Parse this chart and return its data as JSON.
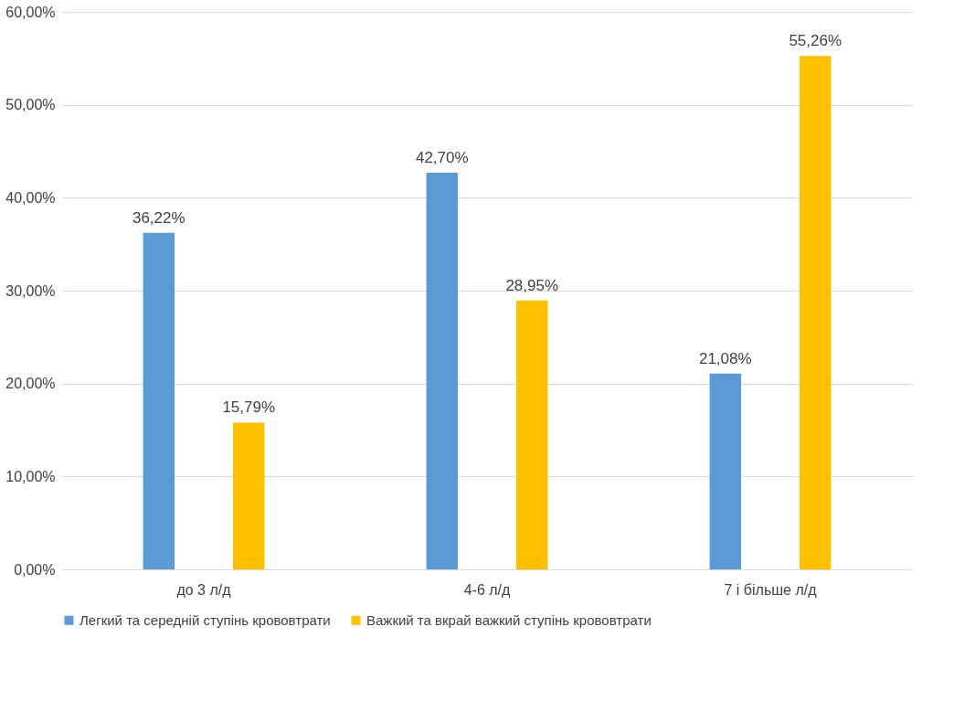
{
  "chart_data": {
    "type": "bar",
    "categories": [
      "до 3 л/д",
      "4-6 л/д",
      "7 і більше л/д"
    ],
    "series": [
      {
        "name": "Легкий та середній ступінь крововтрати",
        "color": "#5b9bd5",
        "values": [
          36.22,
          42.7,
          21.08
        ],
        "value_labels": [
          "36,22%",
          "42,70%",
          "21,08%"
        ]
      },
      {
        "name": "Важкий та вкрай важкий ступінь крововтрати",
        "color": "#ffc000",
        "values": [
          15.79,
          28.95,
          55.26
        ],
        "value_labels": [
          "15,79%",
          "28,95%",
          "55,26%"
        ]
      }
    ],
    "ylim": [
      0,
      60
    ],
    "yticks": [
      {
        "value": 0,
        "label": "0,00%"
      },
      {
        "value": 10,
        "label": "10,00%"
      },
      {
        "value": 20,
        "label": "20,00%"
      },
      {
        "value": 30,
        "label": "30,00%"
      },
      {
        "value": 40,
        "label": "40,00%"
      },
      {
        "value": 50,
        "label": "50,00%"
      },
      {
        "value": 60,
        "label": "60,00%"
      }
    ],
    "grid": "y",
    "legend": "bottom"
  }
}
